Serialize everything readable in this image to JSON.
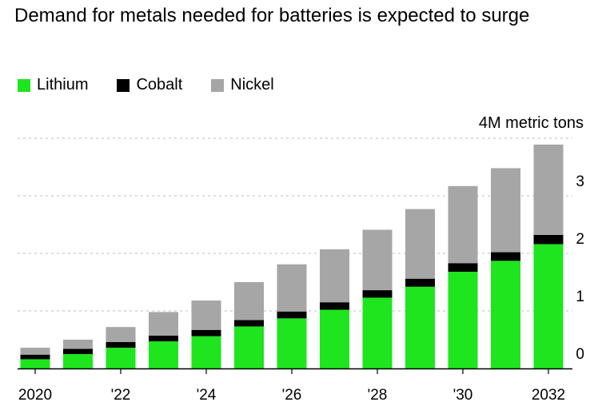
{
  "chart_data": {
    "type": "bar",
    "stacked": true,
    "title": "Demand for metals needed for batteries is expected to surge",
    "unit_label": "4M metric tons",
    "categories": [
      "2020",
      "2021",
      "2022",
      "2023",
      "2024",
      "2025",
      "2026",
      "2027",
      "2028",
      "2029",
      "2030",
      "2031",
      "2032"
    ],
    "x_tick_labels": [
      "2020",
      "",
      "'22",
      "",
      "'24",
      "",
      "'26",
      "",
      "'28",
      "",
      "'30",
      "",
      "2032"
    ],
    "y_ticks": [
      "0",
      "1",
      "2",
      "3"
    ],
    "ylim": [
      0,
      4
    ],
    "grid": true,
    "legend_position": "top-left",
    "series": [
      {
        "name": "Lithium",
        "color": "#1ee51e",
        "values": [
          0.16,
          0.25,
          0.36,
          0.47,
          0.56,
          0.73,
          0.87,
          1.02,
          1.23,
          1.42,
          1.68,
          1.87,
          2.16
        ]
      },
      {
        "name": "Cobalt",
        "color": "#000000",
        "values": [
          0.08,
          0.09,
          0.1,
          0.1,
          0.11,
          0.11,
          0.12,
          0.13,
          0.13,
          0.14,
          0.15,
          0.15,
          0.16
        ]
      },
      {
        "name": "Nickel",
        "color": "#a6a6a6",
        "values": [
          0.12,
          0.16,
          0.26,
          0.41,
          0.51,
          0.66,
          0.82,
          0.92,
          1.05,
          1.21,
          1.34,
          1.46,
          1.57
        ]
      }
    ]
  }
}
